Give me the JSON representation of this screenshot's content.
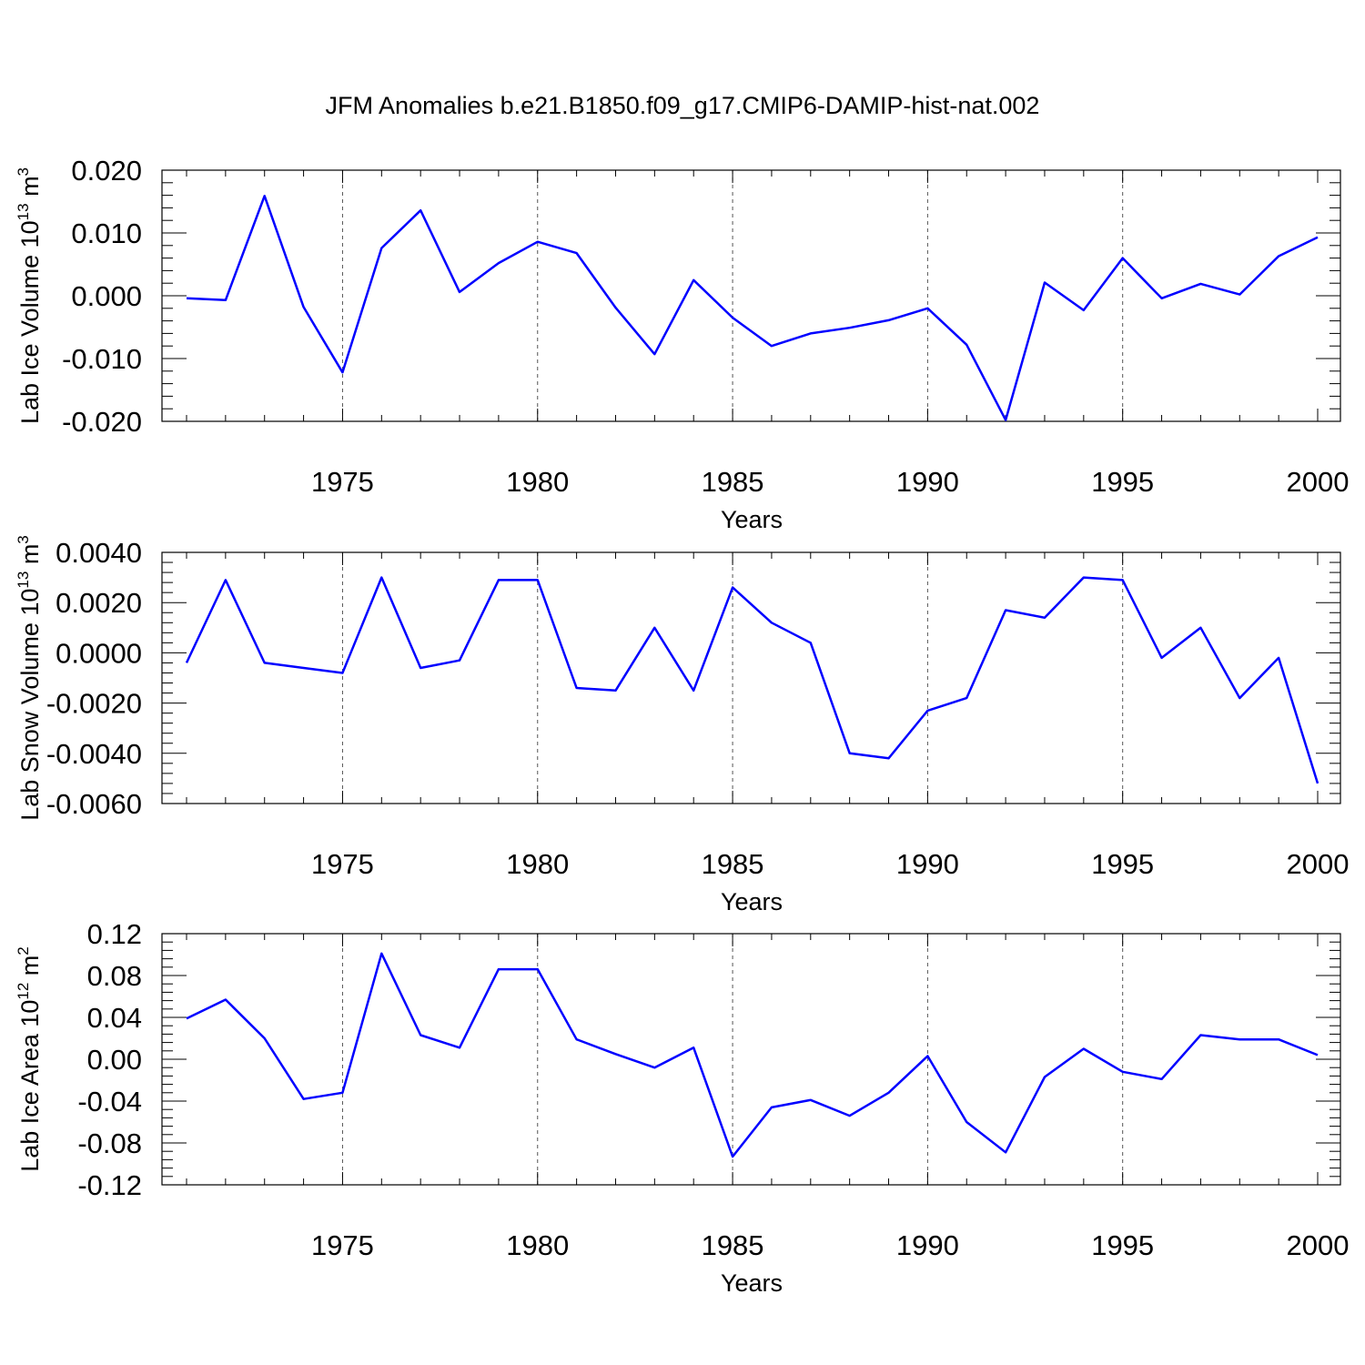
{
  "chart_data": [
    {
      "type": "line",
      "title": "JFM Anomalies b.e21.B1850.f09_g17.CMIP6-DAMIP-hist-nat.002",
      "xlabel": "Years",
      "ylabel": "Lab Ice Volume 10",
      "ylabel_sup": "13",
      "ylabel_unit": "m",
      "ylabel_unit_sup": "3",
      "xlim": [
        1971,
        2000
      ],
      "ylim": [
        -0.02,
        0.02
      ],
      "xticks": [
        "1975",
        "1980",
        "1985",
        "1990",
        "1995",
        "2000"
      ],
      "yticks": [
        "0.020",
        "0.010",
        "0.000",
        "-0.010",
        "-0.020"
      ],
      "ytick_values": [
        0.02,
        0.01,
        0.0,
        -0.01,
        -0.02
      ],
      "x": [
        1971,
        1972,
        1973,
        1974,
        1975,
        1976,
        1977,
        1978,
        1979,
        1980,
        1981,
        1982,
        1983,
        1984,
        1985,
        1986,
        1987,
        1988,
        1989,
        1990,
        1991,
        1992,
        1993,
        1994,
        1995,
        1996,
        1997,
        1998,
        1999,
        2000
      ],
      "series": [
        {
          "name": "Lab Ice Volume",
          "color": "#0000ff",
          "values": [
            -0.0004,
            -0.0007,
            0.0159,
            -0.0018,
            -0.0122,
            0.0076,
            0.0136,
            0.0006,
            0.0052,
            0.0086,
            0.0068,
            -0.0019,
            -0.0093,
            0.0025,
            -0.0035,
            -0.008,
            -0.006,
            -0.0051,
            -0.0039,
            -0.002,
            -0.0078,
            -0.0198,
            0.0021,
            -0.0023,
            0.006,
            -0.0004,
            0.0019,
            0.0002,
            0.0063,
            0.0093
          ]
        }
      ]
    },
    {
      "type": "line",
      "xlabel": "Years",
      "ylabel": "Lab Snow Volume 10",
      "ylabel_sup": "13",
      "ylabel_unit": "m",
      "ylabel_unit_sup": "3",
      "xlim": [
        1971,
        2000
      ],
      "ylim": [
        -0.006,
        0.004
      ],
      "xticks": [
        "1975",
        "1980",
        "1985",
        "1990",
        "1995",
        "2000"
      ],
      "yticks": [
        "0.0040",
        "0.0020",
        "0.0000",
        "-0.0020",
        "-0.0040",
        "-0.0060"
      ],
      "ytick_values": [
        0.004,
        0.002,
        0.0,
        -0.002,
        -0.004,
        -0.006
      ],
      "x": [
        1971,
        1972,
        1973,
        1974,
        1975,
        1976,
        1977,
        1978,
        1979,
        1980,
        1981,
        1982,
        1983,
        1984,
        1985,
        1986,
        1987,
        1988,
        1989,
        1990,
        1991,
        1992,
        1993,
        1994,
        1995,
        1996,
        1997,
        1998,
        1999,
        2000
      ],
      "series": [
        {
          "name": "Lab Snow Volume",
          "color": "#0000ff",
          "values": [
            -0.0004,
            0.0029,
            -0.0004,
            -0.0006,
            -0.0008,
            0.003,
            -0.0006,
            -0.0003,
            0.0029,
            0.0029,
            -0.0014,
            -0.0015,
            0.001,
            -0.0015,
            0.0026,
            0.0012,
            0.0004,
            -0.004,
            -0.0042,
            -0.0023,
            -0.0018,
            0.0017,
            0.0014,
            0.003,
            0.0029,
            -0.0002,
            0.001,
            -0.0018,
            -0.0002,
            -0.0052
          ]
        }
      ]
    },
    {
      "type": "line",
      "xlabel": "Years",
      "ylabel": "Lab Ice Area 10",
      "ylabel_sup": "12",
      "ylabel_unit": "m",
      "ylabel_unit_sup": "2",
      "xlim": [
        1971,
        2000
      ],
      "ylim": [
        -0.12,
        0.12
      ],
      "xticks": [
        "1975",
        "1980",
        "1985",
        "1990",
        "1995",
        "2000"
      ],
      "yticks": [
        "0.12",
        "0.08",
        "0.04",
        "0.00",
        "-0.04",
        "-0.08",
        "-0.12"
      ],
      "ytick_values": [
        0.12,
        0.08,
        0.04,
        0.0,
        -0.04,
        -0.08,
        -0.12
      ],
      "x": [
        1971,
        1972,
        1973,
        1974,
        1975,
        1976,
        1977,
        1978,
        1979,
        1980,
        1981,
        1982,
        1983,
        1984,
        1985,
        1986,
        1987,
        1988,
        1989,
        1990,
        1991,
        1992,
        1993,
        1994,
        1995,
        1996,
        1997,
        1998,
        1999,
        2000
      ],
      "series": [
        {
          "name": "Lab Ice Area",
          "color": "#0000ff",
          "values": [
            0.039,
            0.057,
            0.02,
            -0.038,
            -0.032,
            0.101,
            0.023,
            0.011,
            0.086,
            0.086,
            0.019,
            0.005,
            -0.008,
            0.011,
            -0.093,
            -0.046,
            -0.039,
            -0.054,
            -0.032,
            0.003,
            -0.06,
            -0.089,
            -0.017,
            0.01,
            -0.012,
            -0.019,
            0.023,
            0.019,
            0.019,
            0.004
          ]
        }
      ]
    }
  ]
}
